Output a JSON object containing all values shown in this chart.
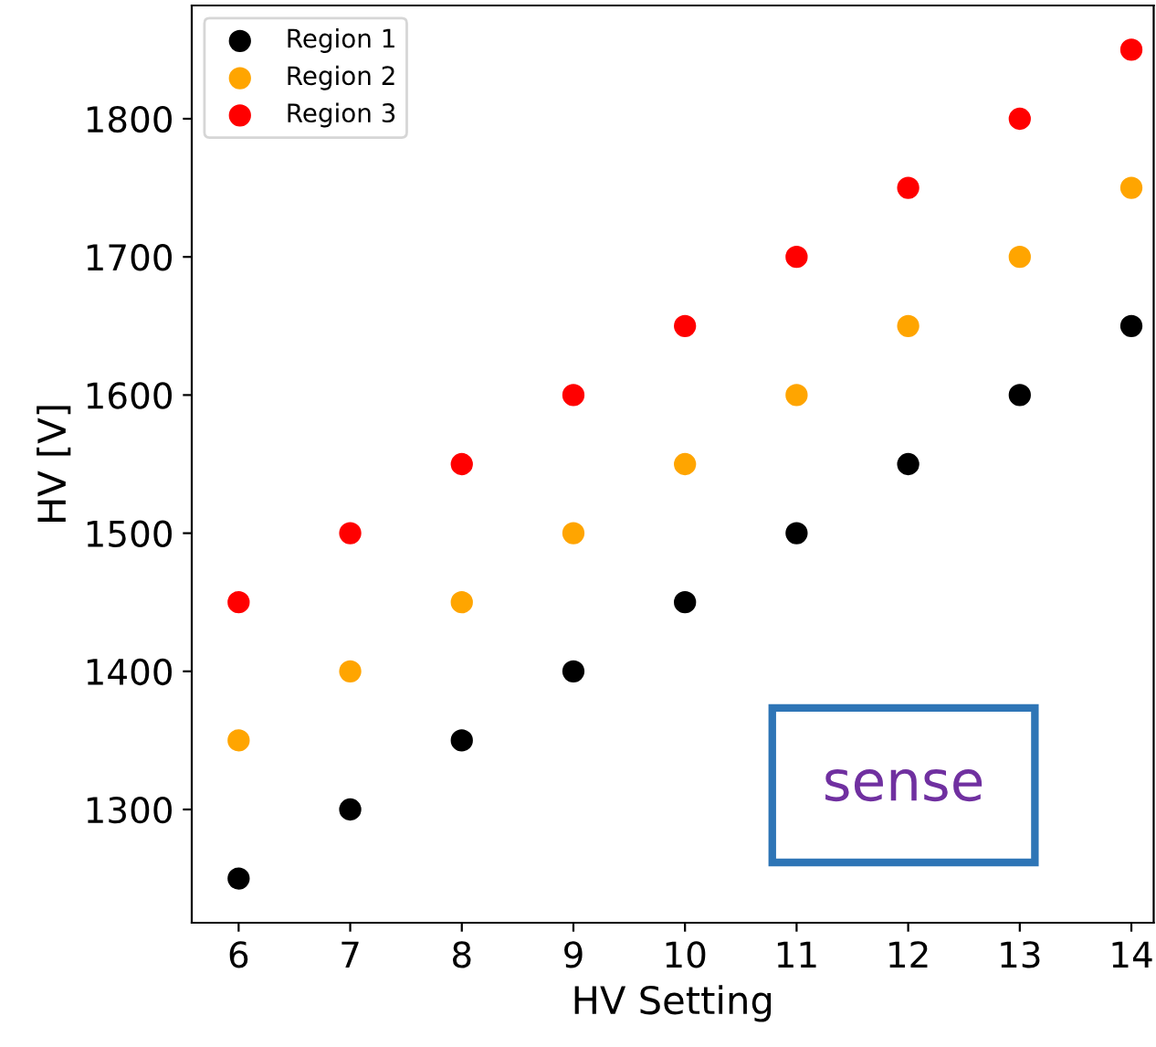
{
  "chart_data": {
    "type": "scatter",
    "xlabel": "HV Setting",
    "ylabel": "HV [V]",
    "x": [
      6,
      7,
      8,
      9,
      10,
      11,
      12,
      13,
      14
    ],
    "series": [
      {
        "name": "Region 1",
        "color": "#000000",
        "values": [
          1250,
          1300,
          1350,
          1400,
          1450,
          1500,
          1550,
          1600,
          1650
        ]
      },
      {
        "name": "Region 2",
        "color": "#ffa500",
        "values": [
          1350,
          1400,
          1450,
          1500,
          1550,
          1600,
          1650,
          1700,
          1750
        ]
      },
      {
        "name": "Region 3",
        "color": "#ff0000",
        "values": [
          1450,
          1500,
          1550,
          1600,
          1650,
          1700,
          1750,
          1800,
          1850
        ]
      }
    ],
    "xlim": [
      5.58,
      14.2
    ],
    "xticks": [
      6,
      7,
      8,
      9,
      10,
      11,
      12,
      13,
      14
    ],
    "ylim": [
      1218,
      1882
    ],
    "yticks": [
      1300,
      1400,
      1500,
      1600,
      1700,
      1800
    ],
    "legend": "top left",
    "marker": "circle",
    "grid": false,
    "annotations": [
      "sense"
    ]
  }
}
